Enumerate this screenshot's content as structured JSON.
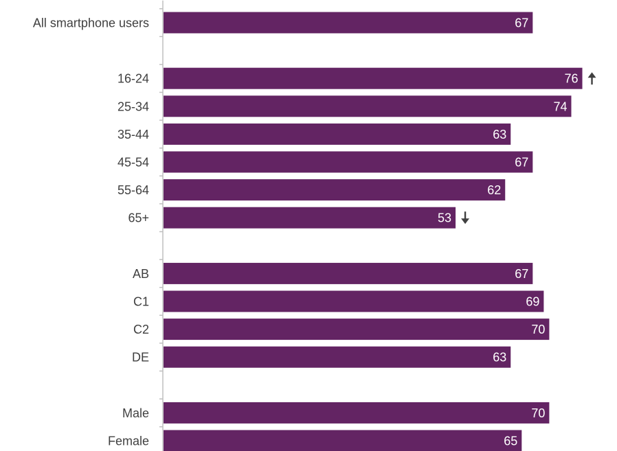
{
  "chart_data": {
    "type": "bar",
    "orientation": "horizontal",
    "categories": [
      "All smartphone users",
      "",
      "16-24",
      "25-34",
      "35-44",
      "45-54",
      "55-64",
      "65+",
      "",
      "AB",
      "C1",
      "C2",
      "DE",
      "",
      "Male",
      "Female"
    ],
    "values": [
      67,
      null,
      76,
      74,
      63,
      67,
      62,
      53,
      null,
      67,
      69,
      70,
      63,
      null,
      70,
      65
    ],
    "significance": [
      null,
      null,
      "up",
      null,
      null,
      null,
      null,
      "down",
      null,
      null,
      null,
      null,
      null,
      null,
      null,
      null
    ],
    "bar_color": "#632463",
    "label_color": "#ffffff",
    "axis_color": "#bfbfbf",
    "xlim": [
      0,
      100
    ],
    "grid": false,
    "legend": "none"
  }
}
